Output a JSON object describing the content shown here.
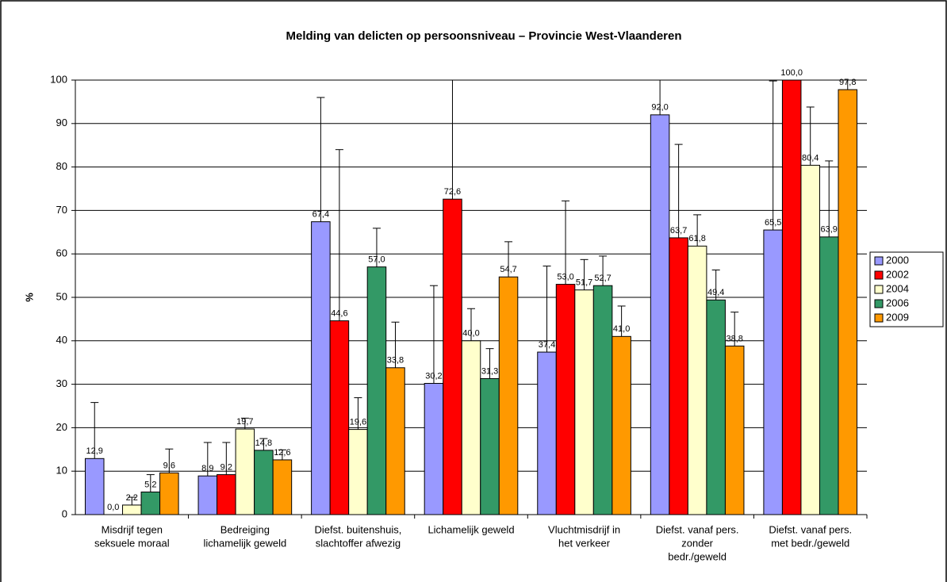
{
  "chart_data": {
    "type": "bar",
    "title": "Melding van delicten op persoonsniveau – Provincie West-Vlaanderen",
    "y_label": "%",
    "categories": [
      [
        "Misdrijf tegen",
        "seksuele moraal"
      ],
      [
        "Bedreiging",
        "lichamelijk geweld"
      ],
      [
        "Diefst. buitenshuis,",
        "slachtoffer afwezig"
      ],
      [
        "Lichamelijk geweld"
      ],
      [
        "Vluchtmisdrijf in",
        "het verkeer"
      ],
      [
        "Diefst. vanaf pers.",
        "zonder",
        "bedr./geweld"
      ],
      [
        "Diefst. vanaf pers.",
        "met bedr./geweld"
      ]
    ],
    "series": [
      {
        "name": "2000",
        "color": "#9999ff",
        "values": [
          12.9,
          8.9,
          67.4,
          30.2,
          37.4,
          92.0,
          65.5
        ],
        "value_labels": [
          "12,9",
          "8,9",
          "67,4",
          "30,2",
          "37,4",
          "92,0",
          "65,5"
        ],
        "errors": [
          12.9,
          7.7,
          28.6,
          22.5,
          19.8,
          8.1,
          34.3
        ]
      },
      {
        "name": "2002",
        "color": "#ff0000",
        "values": [
          0.0,
          9.2,
          44.6,
          72.6,
          53.0,
          63.7,
          100.0
        ],
        "value_labels": [
          "0,0",
          "9,2",
          "44,6",
          "72,6",
          "53,0",
          "63,7",
          "100,0"
        ],
        "errors": [
          0,
          7.4,
          39.4,
          27.6,
          19.2,
          21.5,
          0
        ]
      },
      {
        "name": "2004",
        "color": "#ffffcc",
        "values": [
          2.2,
          19.7,
          19.6,
          40.0,
          51.7,
          61.8,
          80.4
        ],
        "value_labels": [
          "2,2",
          "19,7",
          "19,6",
          "40,0",
          "51,7",
          "61,8",
          "80,4"
        ],
        "errors": [
          1.8,
          2.5,
          7.3,
          7.4,
          7.0,
          7.2,
          13.4
        ]
      },
      {
        "name": "2006",
        "color": "#339966",
        "values": [
          5.2,
          14.8,
          57.0,
          31.3,
          52.7,
          49.4,
          63.9
        ],
        "value_labels": [
          "5,2",
          "14,8",
          "57,0",
          "31,3",
          "52,7",
          "49,4",
          "63,9"
        ],
        "errors": [
          4.0,
          2.7,
          8.9,
          6.9,
          6.8,
          6.9,
          17.5
        ]
      },
      {
        "name": "2009",
        "color": "#ff9900",
        "values": [
          9.6,
          12.6,
          33.8,
          54.7,
          41.0,
          38.8,
          97.8
        ],
        "value_labels": [
          "9,6",
          "12,6",
          "33,8",
          "54,7",
          "41,0",
          "38,8",
          "97,8"
        ],
        "errors": [
          5.5,
          2.3,
          10.5,
          8.1,
          7.0,
          7.8,
          6.3
        ]
      }
    ],
    "ylim": [
      0,
      100
    ],
    "yticks": [
      0,
      10,
      20,
      30,
      40,
      50,
      60,
      70,
      80,
      90,
      100
    ],
    "grid": true,
    "legend": "right"
  }
}
